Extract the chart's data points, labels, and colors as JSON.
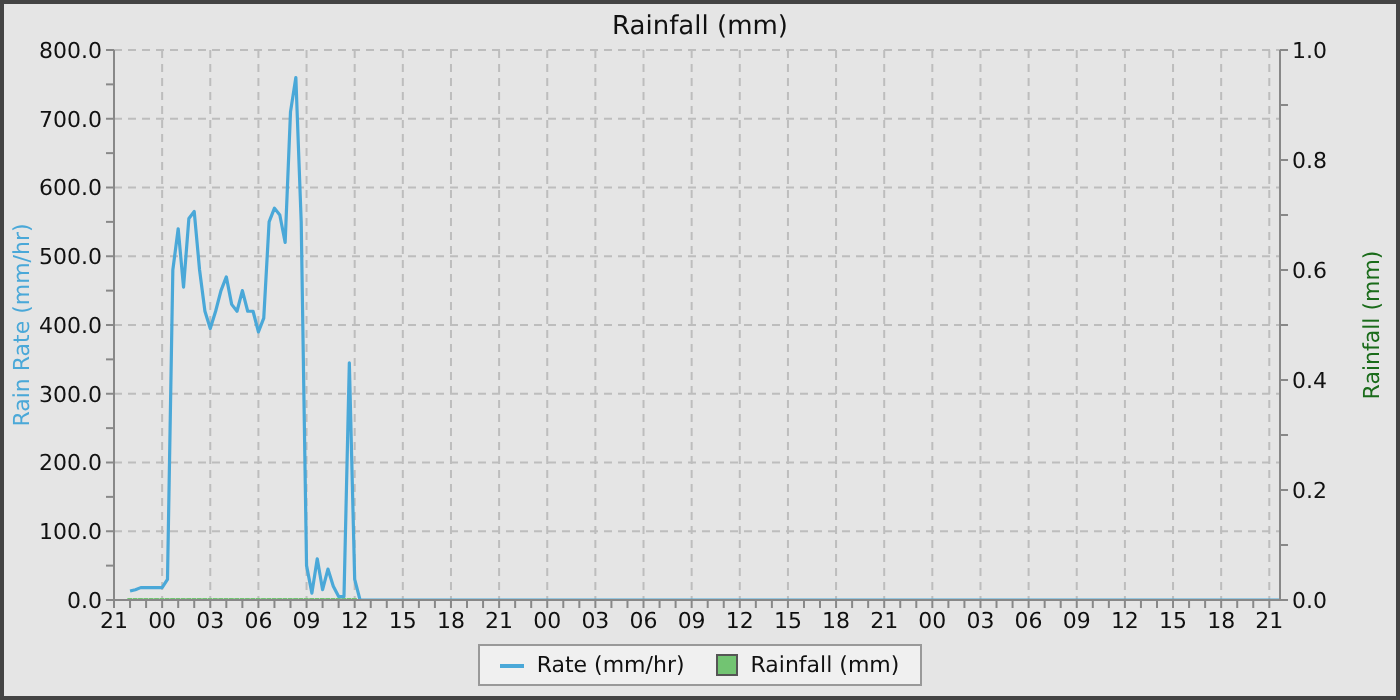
{
  "chart_data": {
    "type": "line",
    "title": "Rainfall (mm)",
    "ylabel": "Rain Rate (mm/hr)",
    "y2label": "Rainfall (mm)",
    "categories": [
      "21",
      null,
      null,
      null,
      null,
      null,
      null,
      null,
      null,
      "00",
      null,
      null,
      null,
      null,
      null,
      null,
      null,
      null,
      "03",
      null,
      null,
      null,
      null,
      null,
      null,
      null,
      null,
      "06",
      null,
      null,
      null,
      null,
      null,
      null,
      null,
      null,
      "09",
      null,
      null,
      null,
      null,
      null,
      null,
      null,
      null,
      "12",
      null,
      null,
      null,
      null,
      null,
      null,
      null,
      null,
      "15",
      null,
      null,
      null,
      null,
      null,
      null,
      null,
      null,
      "18",
      null,
      null,
      null,
      null,
      null,
      null,
      null,
      null,
      "21",
      null,
      null,
      null,
      null,
      null,
      null,
      null,
      null,
      "00",
      null,
      null,
      null,
      null,
      null,
      null,
      null,
      null,
      "03",
      null,
      null,
      null,
      null,
      null,
      null,
      null,
      null,
      "06",
      null,
      null,
      null,
      null,
      null,
      null,
      null,
      null,
      "09",
      null,
      null,
      null,
      null,
      null,
      null,
      null,
      null,
      "12",
      null,
      null,
      null,
      null,
      null,
      null,
      null,
      null,
      "15",
      null,
      null,
      null,
      null,
      null,
      null,
      null,
      null,
      "18",
      null,
      null,
      null,
      null,
      null,
      null,
      null,
      null,
      "21",
      null,
      null,
      null,
      null,
      null,
      null,
      null,
      null,
      "00",
      null,
      null,
      null,
      null,
      null,
      null,
      null,
      null,
      "03",
      null,
      null,
      null,
      null,
      null,
      null,
      null,
      null,
      "06",
      null,
      null,
      null,
      null,
      null,
      null,
      null,
      null,
      "09",
      null,
      null,
      null,
      null,
      null,
      null,
      null,
      null,
      "12",
      null,
      null,
      null,
      null,
      null,
      null,
      null,
      null,
      "15",
      null,
      null,
      null,
      null,
      null,
      null,
      null,
      null,
      "18",
      null,
      null,
      null,
      null,
      null,
      null,
      null,
      null,
      "21",
      null,
      null
    ],
    "ylim": [
      0,
      800
    ],
    "y2lim": [
      0,
      1
    ],
    "yticks": [
      {
        "value": 0,
        "label": "0.0"
      },
      {
        "value": 50,
        "label": null
      },
      {
        "value": 100,
        "label": "100.0"
      },
      {
        "value": 150,
        "label": null
      },
      {
        "value": 200,
        "label": "200.0"
      },
      {
        "value": 250,
        "label": null
      },
      {
        "value": 300,
        "label": "300.0"
      },
      {
        "value": 350,
        "label": null
      },
      {
        "value": 400,
        "label": "400.0"
      },
      {
        "value": 450,
        "label": null
      },
      {
        "value": 500,
        "label": "500.0"
      },
      {
        "value": 550,
        "label": null
      },
      {
        "value": 600,
        "label": "600.0"
      },
      {
        "value": 650,
        "label": null
      },
      {
        "value": 700,
        "label": "700.0"
      },
      {
        "value": 750,
        "label": null
      },
      {
        "value": 800,
        "label": "800.0"
      }
    ],
    "y2ticks": [
      {
        "value": 0,
        "label": "0.0"
      },
      {
        "value": 0.1,
        "label": null
      },
      {
        "value": 0.2,
        "label": "0.2"
      },
      {
        "value": 0.3,
        "label": null
      },
      {
        "value": 0.4,
        "label": "0.4"
      },
      {
        "value": 0.5,
        "label": null
      },
      {
        "value": 0.6,
        "label": "0.6"
      },
      {
        "value": 0.7,
        "label": null
      },
      {
        "value": 0.8,
        "label": "0.8"
      },
      {
        "value": 0.9,
        "label": null
      },
      {
        "value": 1,
        "label": "1.0"
      }
    ],
    "grid": true,
    "legend": "bottom",
    "series": [
      {
        "name": "Rate (mm/hr)",
        "color": "#4aa8d8",
        "values": [
          null,
          null,
          null,
          13,
          15,
          18,
          18,
          18,
          18,
          18,
          30,
          480,
          540,
          455,
          555,
          565,
          480,
          420,
          395,
          420,
          450,
          470,
          430,
          420,
          450,
          420,
          420,
          390,
          410,
          550,
          570,
          560,
          520,
          710,
          760,
          550,
          50,
          10,
          60,
          15,
          45,
          20,
          5,
          5,
          345,
          30,
          0,
          0,
          0,
          0,
          0,
          0,
          0,
          0,
          0,
          0,
          0,
          0,
          0,
          0,
          0,
          0,
          0,
          0,
          0,
          0,
          0,
          0,
          0,
          0,
          0,
          0,
          0,
          0,
          0,
          0,
          0,
          0,
          0,
          0,
          0,
          0,
          0,
          0,
          0,
          0,
          0,
          0,
          0,
          0,
          0,
          0,
          0,
          0,
          0,
          0,
          0,
          0,
          0,
          0,
          0,
          0,
          0,
          0,
          0,
          0,
          0,
          0,
          0,
          0,
          0,
          0,
          0,
          0,
          0,
          0,
          0,
          0,
          0,
          0,
          0,
          0,
          0,
          0,
          0,
          0,
          0,
          0,
          0,
          0,
          0,
          0,
          0,
          0,
          0,
          0,
          0,
          0,
          0,
          0,
          0,
          0,
          0,
          0,
          0,
          0,
          0,
          0,
          0,
          0,
          0,
          0,
          0,
          0,
          0,
          0,
          0,
          0,
          0,
          0,
          0,
          0,
          0,
          0,
          0,
          0,
          0,
          0,
          0,
          0,
          0,
          0,
          0,
          0,
          0,
          0,
          0,
          0,
          0,
          0,
          0,
          0,
          0,
          0,
          0,
          0,
          0,
          0,
          0,
          0,
          0,
          0,
          0,
          0,
          0,
          0,
          0,
          0,
          0,
          0,
          0,
          0,
          0,
          0,
          0,
          0,
          0,
          0,
          0,
          0,
          0,
          0,
          0,
          0,
          0,
          0,
          0,
          0,
          0
        ]
      },
      {
        "name": "Rainfall (mm)",
        "type": "bar",
        "axis": "y2",
        "color": "#72c472",
        "values": [
          null,
          null,
          null,
          0,
          0,
          0,
          0,
          0,
          0,
          0,
          0,
          0,
          0,
          0,
          0,
          0,
          0,
          0,
          0,
          0,
          0,
          0,
          0,
          0,
          0,
          0,
          0,
          0,
          0,
          0,
          0,
          0,
          0,
          0,
          0,
          0,
          0,
          0,
          0,
          0,
          0,
          0,
          0,
          0,
          0,
          0,
          null,
          null,
          null,
          null,
          null,
          null,
          null,
          null,
          null,
          null,
          null,
          null,
          null,
          null,
          null,
          null,
          null,
          null,
          null,
          null,
          null,
          null,
          null,
          null,
          null,
          null,
          null,
          null,
          null,
          null,
          null,
          null,
          null,
          null,
          null,
          null,
          null,
          null,
          null,
          null,
          null,
          null,
          null,
          null,
          null,
          null,
          null,
          null,
          null,
          null,
          null,
          null,
          null,
          null,
          null,
          null,
          null,
          null,
          null,
          null,
          null,
          null,
          null,
          null,
          null,
          null,
          null,
          null,
          null,
          null,
          null,
          null,
          null,
          null,
          null,
          null,
          null,
          null,
          null,
          null,
          null,
          null,
          null,
          null,
          null,
          null,
          null,
          null,
          null,
          null,
          null,
          null,
          null,
          null,
          null,
          null,
          null,
          null,
          null,
          null,
          null,
          null,
          null,
          null,
          null,
          null,
          null,
          null,
          null,
          null,
          null,
          null,
          null,
          null,
          null,
          null,
          null,
          null,
          null,
          null,
          null,
          null,
          null,
          null,
          null,
          null,
          null,
          null,
          null,
          null,
          null,
          null,
          null,
          null,
          null,
          null,
          null,
          null,
          null,
          null,
          null,
          null,
          null,
          null,
          null,
          null,
          null,
          null,
          null,
          null,
          null,
          null,
          null,
          null,
          null,
          null,
          null,
          null,
          null,
          null,
          null,
          null,
          null,
          null,
          null,
          null,
          null,
          null,
          null,
          null,
          null,
          null,
          null
        ]
      }
    ]
  }
}
